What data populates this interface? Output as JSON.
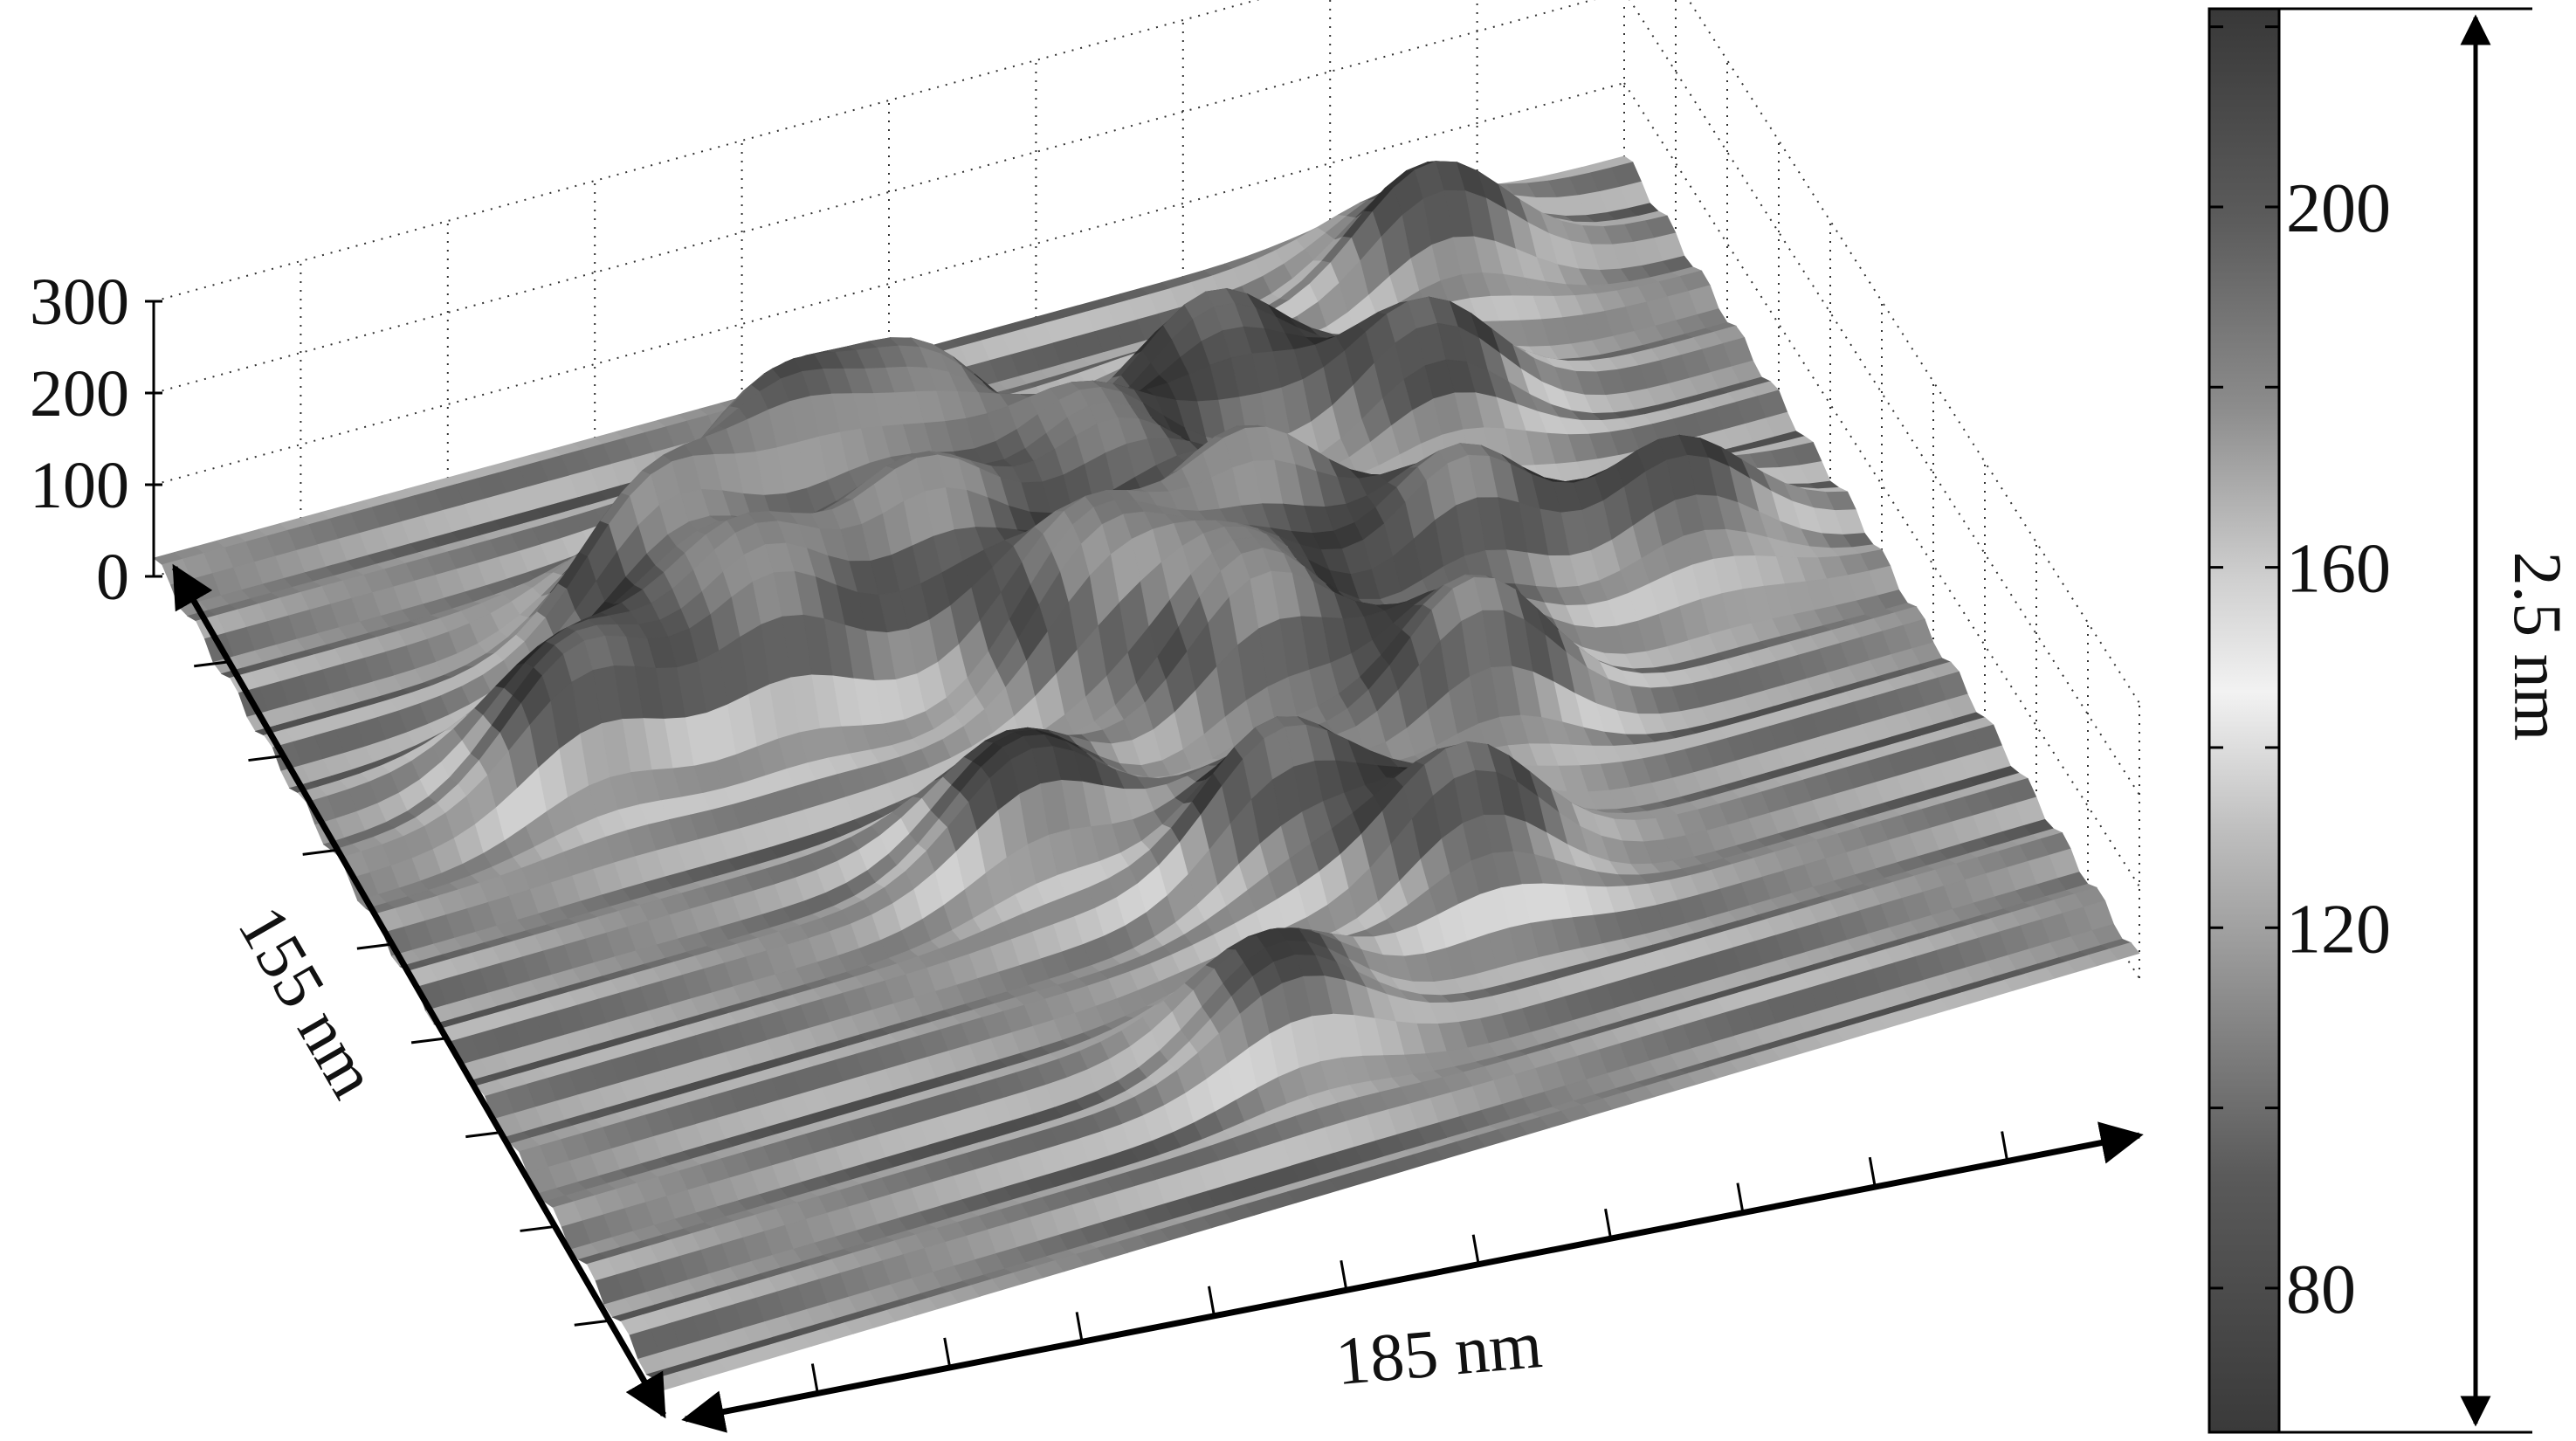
{
  "chart_data": {
    "type": "surface3d",
    "title": "",
    "x_axis": {
      "label": "185 nm"
    },
    "y_axis": {
      "label": "155 nm"
    },
    "z_axis": {
      "ticks": [
        0,
        100,
        200,
        300
      ],
      "range": [
        0,
        300
      ]
    },
    "colorbar": {
      "ticks": [
        80,
        120,
        160,
        200
      ],
      "range": [
        64,
        222
      ],
      "colormap": "gray"
    },
    "scale_bar": {
      "label": "2.5 nm"
    },
    "peaks": [
      {
        "x": 0.17,
        "y": 0.34,
        "z": 150
      },
      {
        "x": 0.26,
        "y": 0.23,
        "z": 160
      },
      {
        "x": 0.3,
        "y": 0.33,
        "z": 175
      },
      {
        "x": 0.36,
        "y": 0.19,
        "z": 190
      },
      {
        "x": 0.42,
        "y": 0.3,
        "z": 170
      },
      {
        "x": 0.46,
        "y": 0.18,
        "z": 165
      },
      {
        "x": 0.5,
        "y": 0.4,
        "z": 185
      },
      {
        "x": 0.55,
        "y": 0.26,
        "z": 160
      },
      {
        "x": 0.58,
        "y": 0.48,
        "z": 180
      },
      {
        "x": 0.62,
        "y": 0.36,
        "z": 175
      },
      {
        "x": 0.66,
        "y": 0.18,
        "z": 150
      },
      {
        "x": 0.7,
        "y": 0.56,
        "z": 170
      },
      {
        "x": 0.74,
        "y": 0.42,
        "z": 165
      },
      {
        "x": 0.78,
        "y": 0.24,
        "z": 140
      },
      {
        "x": 0.84,
        "y": 0.08,
        "z": 130
      },
      {
        "x": 0.88,
        "y": 0.44,
        "z": 120
      },
      {
        "x": 0.4,
        "y": 0.55,
        "z": 130
      },
      {
        "x": 0.54,
        "y": 0.64,
        "z": 150
      },
      {
        "x": 0.64,
        "y": 0.72,
        "z": 145
      },
      {
        "x": 0.48,
        "y": 0.82,
        "z": 110
      }
    ]
  }
}
